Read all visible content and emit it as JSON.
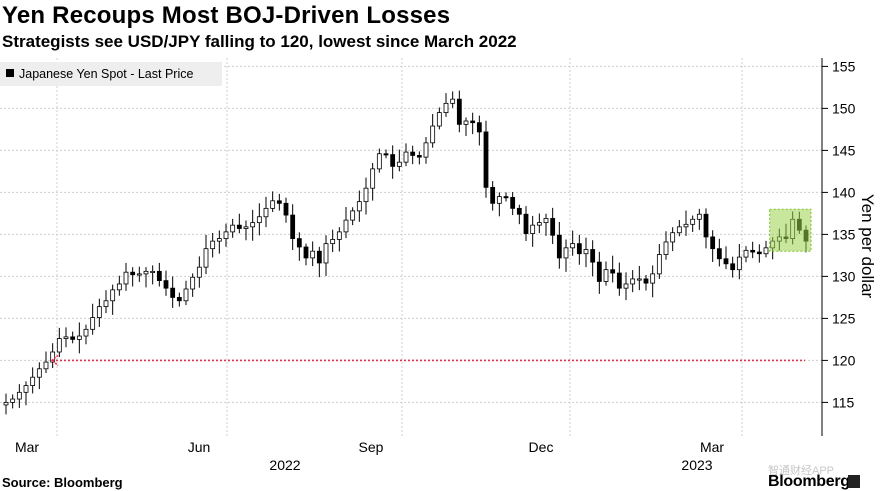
{
  "title": "Yen Recoups Most BOJ-Driven Losses",
  "subtitle": "Strategists see USD/JPY falling to 120, lowest since March 2022",
  "source": "Source: Bloomberg",
  "brand": "Bloomberg",
  "watermark": "智通财经APP",
  "colors": {
    "candle": "#000000",
    "grid": "#cfcfcf",
    "target": "#e0334f",
    "highlight": "#9bd14a"
  },
  "chart_data": {
    "type": "candlestick",
    "legend": "Japanese Yen Spot - Last Price",
    "ylabel": "Yen per dollar",
    "ylim": [
      111,
      156
    ],
    "yticks": [
      115,
      120,
      125,
      130,
      135,
      140,
      145,
      150,
      155
    ],
    "xticks": [
      "Mar",
      "Jun",
      "Sep",
      "Dec",
      "Mar"
    ],
    "years": [
      "2022",
      "2023"
    ],
    "target_level": 120,
    "highlight_range": [
      133,
      138
    ],
    "series": [
      {
        "name": "USD/JPY",
        "values": [
          115,
          115.4,
          116.2,
          117,
          118,
          119,
          119.8,
          121,
          122.6,
          122.8,
          122.5,
          122.9,
          123.7,
          125.1,
          126.4,
          127.1,
          128.4,
          129.1,
          130.5,
          130.2,
          130.3,
          130.6,
          130.6,
          129.5,
          128.6,
          127.5,
          127.1,
          128.5,
          129.9,
          131.1,
          133.3,
          134.2,
          134.5,
          135.3,
          136.1,
          135.7,
          135.9,
          136.4,
          137.1,
          138.1,
          139,
          138.7,
          137.3,
          134.5,
          133.5,
          132.2,
          133,
          131.6,
          133.9,
          134.4,
          135.3,
          136.7,
          137.8,
          138.9,
          140.5,
          142.8,
          144.6,
          144.5,
          143.1,
          143.6,
          144.8,
          144.4,
          144.2,
          145.9,
          147.9,
          149.5,
          150.6,
          151.1,
          148.1,
          148.5,
          148.3,
          147.2,
          140.6,
          138.7,
          139.5,
          139.4,
          138.1,
          137.4,
          135.1,
          136.1,
          136.4,
          136.9,
          134.9,
          132.2,
          133.4,
          133.9,
          132.7,
          133.2,
          131.7,
          129.4,
          130.8,
          130.4,
          128.6,
          129.1,
          129.7,
          129.7,
          129.2,
          130.3,
          132.6,
          134.1,
          135.2,
          135.9,
          136.2,
          136.8,
          137.4,
          134.7,
          133.3,
          132.1,
          131.5,
          130.8,
          132.3,
          133.1,
          132.9,
          132.7,
          133.4,
          134.2,
          134.7,
          134.5,
          136.8,
          135.5,
          134.2
        ]
      }
    ]
  }
}
